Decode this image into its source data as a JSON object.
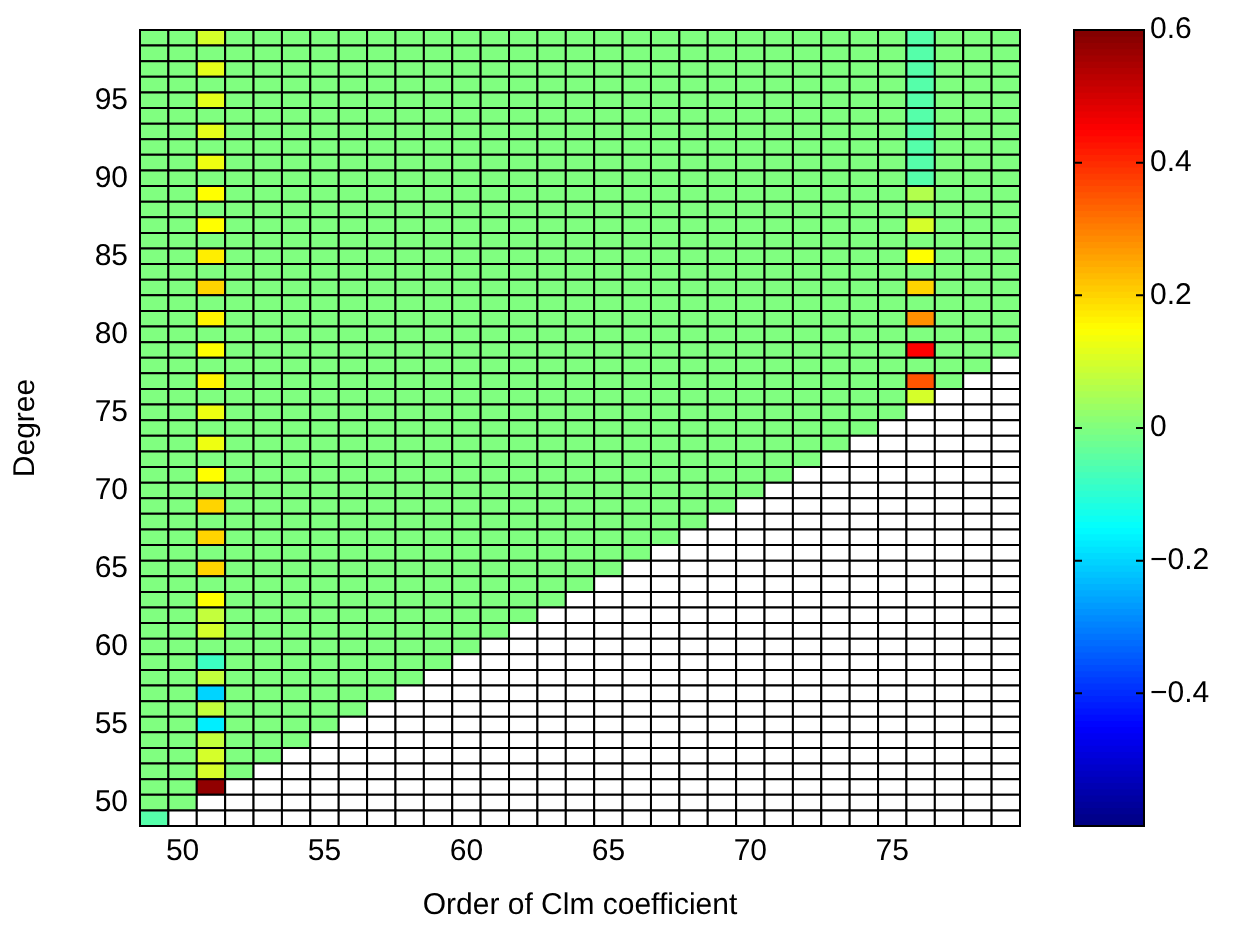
{
  "chart_data": {
    "type": "heatmap",
    "xlabel": "Order of Clm coefficient",
    "ylabel": "Degree",
    "categories": [
      null,
      "50",
      null,
      null,
      null,
      null,
      "55",
      null,
      null,
      null,
      null,
      "60",
      null,
      null,
      null,
      null,
      "65",
      null,
      null,
      null,
      null,
      "70",
      null,
      null,
      null,
      null,
      "75",
      null,
      null,
      null,
      null
    ],
    "y_categories": [
      null,
      null,
      null,
      null,
      "95",
      null,
      null,
      null,
      null,
      "90",
      null,
      null,
      null,
      null,
      "85",
      null,
      null,
      null,
      null,
      "80",
      null,
      null,
      null,
      null,
      "75",
      null,
      null,
      null,
      null,
      "70",
      null,
      null,
      null,
      null,
      "65",
      null,
      null,
      null,
      null,
      "60",
      null,
      null,
      null,
      null,
      "55",
      null,
      null,
      null,
      null,
      "50",
      null
    ],
    "clim": [
      -0.6,
      0.6
    ],
    "cticks": [
      {
        "value": -0.4,
        "label": "−0.4"
      },
      {
        "value": -0.2,
        "label": "−0.2"
      },
      0,
      0.2,
      0.4,
      0.6
    ],
    "cells": [
      [
        0,
        0,
        0.1,
        0,
        0,
        0,
        0,
        0,
        0,
        0,
        0,
        0,
        0,
        0,
        0,
        0,
        0,
        0,
        0,
        0,
        0,
        0,
        0,
        0,
        0,
        0,
        0,
        -0.05,
        0,
        0,
        0
      ],
      [
        0,
        0,
        0,
        0,
        0,
        0,
        0,
        0,
        0,
        0,
        0,
        0,
        0,
        0,
        0,
        0,
        0,
        0,
        0,
        0,
        0,
        0,
        0,
        0,
        0,
        0,
        0,
        -0.05,
        0,
        0,
        0
      ],
      [
        0,
        0,
        0.12,
        0,
        0,
        0,
        0,
        0,
        0,
        0,
        0,
        0,
        0,
        0,
        0,
        0,
        0,
        0,
        0,
        0,
        0,
        0,
        0,
        0,
        0,
        0,
        0,
        -0.05,
        0,
        0,
        0
      ],
      [
        0,
        0,
        0,
        0,
        0,
        0,
        0,
        0,
        0,
        0,
        0,
        0,
        0,
        0,
        0,
        0,
        0,
        0,
        0,
        0,
        0,
        0,
        0,
        0,
        0,
        0,
        0,
        -0.05,
        0,
        0,
        0
      ],
      [
        0,
        0,
        0.12,
        0,
        0,
        0,
        0,
        0,
        0,
        0,
        0,
        0,
        0,
        0,
        0,
        0,
        0,
        0,
        0,
        0,
        0,
        0,
        0,
        0,
        0,
        0,
        0,
        -0.05,
        0,
        0,
        0
      ],
      [
        0,
        0,
        0,
        0,
        0,
        0,
        0,
        0,
        0,
        0,
        0,
        0,
        0,
        0,
        0,
        0,
        0,
        0,
        0,
        0,
        0,
        0,
        0,
        0,
        0,
        0,
        0,
        -0.05,
        0,
        0,
        0
      ],
      [
        0,
        0,
        0.12,
        0,
        0,
        0,
        0,
        0,
        0,
        0,
        0,
        0,
        0,
        0,
        0,
        0,
        0,
        0,
        0,
        0,
        0,
        0,
        0,
        0,
        0,
        0,
        0,
        -0.05,
        0,
        0,
        0
      ],
      [
        0,
        0,
        0,
        0,
        0,
        0,
        0,
        0,
        0,
        0,
        0,
        0,
        0,
        0,
        0,
        0,
        0,
        0,
        0,
        0,
        0,
        0,
        0,
        0,
        0,
        0,
        0,
        -0.05,
        0,
        0,
        0
      ],
      [
        0,
        0,
        0.13,
        0,
        0,
        0,
        0,
        0,
        0,
        0,
        0,
        0,
        0,
        0,
        0,
        0,
        0,
        0,
        0,
        0,
        0,
        0,
        0,
        0,
        0,
        0,
        0,
        -0.05,
        0,
        0,
        0
      ],
      [
        0,
        0,
        0,
        0,
        0,
        0,
        0,
        0,
        0,
        0,
        0,
        0,
        0,
        0,
        0,
        0,
        0,
        0,
        0,
        0,
        0,
        0,
        0,
        0,
        0,
        0,
        0,
        -0.05,
        0,
        0,
        0
      ],
      [
        0,
        0,
        0.15,
        0,
        0,
        0,
        0,
        0,
        0,
        0,
        0,
        0,
        0,
        0,
        0,
        0,
        0,
        0,
        0,
        0,
        0,
        0,
        0,
        0,
        0,
        0,
        0,
        0.06,
        0,
        0,
        0
      ],
      [
        0,
        0,
        0,
        0,
        0,
        0,
        0,
        0,
        0,
        0,
        0,
        0,
        0,
        0,
        0,
        0,
        0,
        0,
        0,
        0,
        0,
        0,
        0,
        0,
        0,
        0,
        0,
        0,
        0,
        0,
        0
      ],
      [
        0,
        0,
        0.15,
        0,
        0,
        0,
        0,
        0,
        0,
        0,
        0,
        0,
        0,
        0,
        0,
        0,
        0,
        0,
        0,
        0,
        0,
        0,
        0,
        0,
        0,
        0,
        0,
        0.1,
        0,
        0,
        0
      ],
      [
        0,
        0,
        0,
        0,
        0,
        0,
        0,
        0,
        0,
        0,
        0,
        0,
        0,
        0,
        0,
        0,
        0,
        0,
        0,
        0,
        0,
        0,
        0,
        0,
        0,
        0,
        0,
        0,
        0,
        0,
        0
      ],
      [
        0,
        0,
        0.17,
        0,
        0,
        0,
        0,
        0,
        0,
        0,
        0,
        0,
        0,
        0,
        0,
        0,
        0,
        0,
        0,
        0,
        0,
        0,
        0,
        0,
        0,
        0,
        0,
        0.15,
        0,
        0,
        0
      ],
      [
        0,
        0,
        0,
        0,
        0,
        0,
        0,
        0,
        0,
        0,
        0,
        0,
        0,
        0,
        0,
        0,
        0,
        0,
        0,
        0,
        0,
        0,
        0,
        0,
        0,
        0,
        0,
        0,
        0,
        0,
        0
      ],
      [
        0,
        0,
        0.2,
        0,
        0,
        0,
        0,
        0,
        0,
        0,
        0,
        0,
        0,
        0,
        0,
        0,
        0,
        0,
        0,
        0,
        0,
        0,
        0,
        0,
        0,
        0,
        0,
        0.2,
        0,
        0,
        0
      ],
      [
        0,
        0,
        0,
        0,
        0,
        0,
        0,
        0,
        0,
        0,
        0,
        0,
        0,
        0,
        0,
        0,
        0,
        0,
        0,
        0,
        0,
        0,
        0,
        0,
        0,
        0,
        0,
        0,
        0,
        0,
        0
      ],
      [
        0,
        0,
        0.16,
        0,
        0,
        0,
        0,
        0,
        0,
        0,
        0,
        0,
        0,
        0,
        0,
        0,
        0,
        0,
        0,
        0,
        0,
        0,
        0,
        0,
        0,
        0,
        0,
        0.28,
        0,
        0,
        0
      ],
      [
        0,
        0,
        0,
        0,
        0,
        0,
        0,
        0,
        0,
        0,
        0,
        0,
        0,
        0,
        0,
        0,
        0,
        0,
        0,
        0,
        0,
        0,
        0,
        0,
        0,
        0,
        0,
        0,
        0,
        0,
        0
      ],
      [
        0,
        0,
        0.15,
        0,
        0,
        0,
        0,
        0,
        0,
        0,
        0,
        0,
        0,
        0,
        0,
        0,
        0,
        0,
        0,
        0,
        0,
        0,
        0,
        0,
        0,
        0,
        0,
        0.45,
        0,
        0,
        0
      ],
      [
        0,
        0,
        0,
        0,
        0,
        0,
        0,
        0,
        0,
        0,
        0,
        0,
        0,
        0,
        0,
        0,
        0,
        0,
        0,
        0,
        0,
        0,
        0,
        0,
        0,
        0,
        0,
        0,
        0,
        0,
        null
      ],
      [
        0,
        0,
        0.16,
        0,
        0,
        0,
        0,
        0,
        0,
        0,
        0,
        0,
        0,
        0,
        0,
        0,
        0,
        0,
        0,
        0,
        0,
        0,
        0,
        0,
        0,
        0,
        0,
        0.35,
        0,
        null,
        null
      ],
      [
        0,
        0,
        0,
        0,
        0,
        0,
        0,
        0,
        0,
        0,
        0,
        0,
        0,
        0,
        0,
        0,
        0,
        0,
        0,
        0,
        0,
        0,
        0,
        0,
        0,
        0,
        0,
        0.1,
        null,
        null,
        null
      ],
      [
        0,
        0,
        0.13,
        0,
        0,
        0,
        0,
        0,
        0,
        0,
        0,
        0,
        0,
        0,
        0,
        0,
        0,
        0,
        0,
        0,
        0,
        0,
        0,
        0,
        0,
        0,
        0,
        null,
        null,
        null,
        null
      ],
      [
        0,
        0,
        0,
        0,
        0,
        0,
        0,
        0,
        0,
        0,
        0,
        0,
        0,
        0,
        0,
        0,
        0,
        0,
        0,
        0,
        0,
        0,
        0,
        0,
        0,
        0,
        null,
        null,
        null,
        null,
        null
      ],
      [
        0,
        0,
        0.13,
        0,
        0,
        0,
        0,
        0,
        0,
        0,
        0,
        0,
        0,
        0,
        0,
        0,
        0,
        0,
        0,
        0,
        0,
        0,
        0,
        0,
        0,
        null,
        null,
        null,
        null,
        null,
        null
      ],
      [
        0,
        0,
        0,
        0,
        0,
        0,
        0,
        0,
        0,
        0,
        0,
        0,
        0,
        0,
        0,
        0,
        0,
        0,
        0,
        0,
        0,
        0,
        0,
        0,
        null,
        null,
        null,
        null,
        null,
        null,
        null
      ],
      [
        0,
        0,
        0.15,
        0,
        0,
        0,
        0,
        0,
        0,
        0,
        0,
        0,
        0,
        0,
        0,
        0,
        0,
        0,
        0,
        0,
        0,
        0,
        0,
        null,
        null,
        null,
        null,
        null,
        null,
        null,
        null
      ],
      [
        0,
        0,
        0,
        0,
        0,
        0,
        0,
        0,
        0,
        0,
        0,
        0,
        0,
        0,
        0,
        0,
        0,
        0,
        0,
        0,
        0,
        0,
        null,
        null,
        null,
        null,
        null,
        null,
        null,
        null,
        null
      ],
      [
        0,
        0,
        0.2,
        0,
        0,
        0,
        0,
        0,
        0,
        0,
        0,
        0,
        0,
        0,
        0,
        0,
        0,
        0,
        0,
        0,
        0,
        null,
        null,
        null,
        null,
        null,
        null,
        null,
        null,
        null,
        null
      ],
      [
        0,
        0,
        0,
        0,
        0,
        0,
        0,
        0,
        0,
        0,
        0,
        0,
        0,
        0,
        0,
        0,
        0,
        0,
        0,
        0,
        null,
        null,
        null,
        null,
        null,
        null,
        null,
        null,
        null,
        null,
        null
      ],
      [
        0,
        0,
        0.2,
        0,
        0,
        0,
        0,
        0,
        0,
        0,
        0,
        0,
        0,
        0,
        0,
        0,
        0,
        0,
        0,
        null,
        null,
        null,
        null,
        null,
        null,
        null,
        null,
        null,
        null,
        null,
        null
      ],
      [
        0,
        0,
        0,
        0,
        0,
        0,
        0,
        0,
        0,
        0,
        0,
        0,
        0,
        0,
        0,
        0,
        0,
        0,
        null,
        null,
        null,
        null,
        null,
        null,
        null,
        null,
        null,
        null,
        null,
        null,
        null
      ],
      [
        0,
        0,
        0.2,
        0,
        0,
        0,
        0,
        0,
        0,
        0,
        0,
        0,
        0,
        0,
        0,
        0,
        0,
        null,
        null,
        null,
        null,
        null,
        null,
        null,
        null,
        null,
        null,
        null,
        null,
        null,
        null
      ],
      [
        0,
        0,
        0,
        0,
        0,
        0,
        0,
        0,
        0,
        0,
        0,
        0,
        0,
        0,
        0,
        0,
        null,
        null,
        null,
        null,
        null,
        null,
        null,
        null,
        null,
        null,
        null,
        null,
        null,
        null,
        null
      ],
      [
        0,
        0,
        0.15,
        0,
        0,
        0,
        0,
        0,
        0,
        0,
        0,
        0,
        0,
        0,
        0,
        null,
        null,
        null,
        null,
        null,
        null,
        null,
        null,
        null,
        null,
        null,
        null,
        null,
        null,
        null,
        null
      ],
      [
        0,
        0,
        0.08,
        0,
        0,
        0,
        0,
        0,
        0,
        0,
        0,
        0,
        0,
        0,
        null,
        null,
        null,
        null,
        null,
        null,
        null,
        null,
        null,
        null,
        null,
        null,
        null,
        null,
        null,
        null,
        null
      ],
      [
        0,
        0,
        0.1,
        0,
        0,
        0,
        0,
        0,
        0,
        0,
        0,
        0,
        0,
        null,
        null,
        null,
        null,
        null,
        null,
        null,
        null,
        null,
        null,
        null,
        null,
        null,
        null,
        null,
        null,
        null,
        null
      ],
      [
        0,
        0,
        0,
        0,
        0,
        0,
        0,
        0,
        0,
        0,
        0,
        0,
        null,
        null,
        null,
        null,
        null,
        null,
        null,
        null,
        null,
        null,
        null,
        null,
        null,
        null,
        null,
        null,
        null,
        null,
        null
      ],
      [
        0,
        0,
        -0.08,
        0,
        0,
        0,
        0,
        0,
        0,
        0,
        0,
        null,
        null,
        null,
        null,
        null,
        null,
        null,
        null,
        null,
        null,
        null,
        null,
        null,
        null,
        null,
        null,
        null,
        null,
        null,
        null
      ],
      [
        0,
        0,
        0.08,
        0,
        0,
        0,
        0,
        0,
        0,
        0,
        null,
        null,
        null,
        null,
        null,
        null,
        null,
        null,
        null,
        null,
        null,
        null,
        null,
        null,
        null,
        null,
        null,
        null,
        null,
        null,
        null
      ],
      [
        0,
        0,
        -0.2,
        0,
        0,
        0,
        0,
        0,
        0,
        null,
        null,
        null,
        null,
        null,
        null,
        null,
        null,
        null,
        null,
        null,
        null,
        null,
        null,
        null,
        null,
        null,
        null,
        null,
        null,
        null,
        null
      ],
      [
        0,
        0,
        0.08,
        0,
        0,
        0,
        0,
        0,
        null,
        null,
        null,
        null,
        null,
        null,
        null,
        null,
        null,
        null,
        null,
        null,
        null,
        null,
        null,
        null,
        null,
        null,
        null,
        null,
        null,
        null,
        null
      ],
      [
        0,
        0,
        -0.17,
        0,
        0,
        0,
        0,
        null,
        null,
        null,
        null,
        null,
        null,
        null,
        null,
        null,
        null,
        null,
        null,
        null,
        null,
        null,
        null,
        null,
        null,
        null,
        null,
        null,
        null,
        null,
        null
      ],
      [
        0,
        0,
        0.08,
        0,
        0,
        0,
        null,
        null,
        null,
        null,
        null,
        null,
        null,
        null,
        null,
        null,
        null,
        null,
        null,
        null,
        null,
        null,
        null,
        null,
        null,
        null,
        null,
        null,
        null,
        null,
        null
      ],
      [
        0,
        0,
        0.1,
        0,
        0,
        null,
        null,
        null,
        null,
        null,
        null,
        null,
        null,
        null,
        null,
        null,
        null,
        null,
        null,
        null,
        null,
        null,
        null,
        null,
        null,
        null,
        null,
        null,
        null,
        null,
        null
      ],
      [
        0,
        0,
        0.1,
        0,
        null,
        null,
        null,
        null,
        null,
        null,
        null,
        null,
        null,
        null,
        null,
        null,
        null,
        null,
        null,
        null,
        null,
        null,
        null,
        null,
        null,
        null,
        null,
        null,
        null,
        null,
        null
      ],
      [
        0,
        0,
        0.58,
        null,
        null,
        null,
        null,
        null,
        null,
        null,
        null,
        null,
        null,
        null,
        null,
        null,
        null,
        null,
        null,
        null,
        null,
        null,
        null,
        null,
        null,
        null,
        null,
        null,
        null,
        null,
        null
      ],
      [
        0,
        0,
        null,
        null,
        null,
        null,
        null,
        null,
        null,
        null,
        null,
        null,
        null,
        null,
        null,
        null,
        null,
        null,
        null,
        null,
        null,
        null,
        null,
        null,
        null,
        null,
        null,
        null,
        null,
        null,
        null
      ],
      [
        -0.05,
        null,
        null,
        null,
        null,
        null,
        null,
        null,
        null,
        null,
        null,
        null,
        null,
        null,
        null,
        null,
        null,
        null,
        null,
        null,
        null,
        null,
        null,
        null,
        null,
        null,
        null,
        null,
        null,
        null,
        null
      ]
    ]
  }
}
